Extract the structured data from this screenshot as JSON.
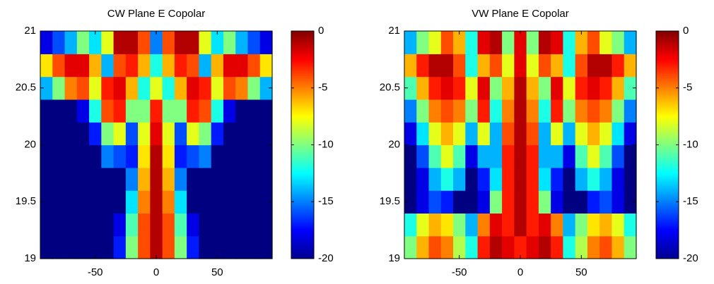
{
  "chart_data": [
    {
      "type": "heatmap",
      "title": "CW Plane E Copolar",
      "x": [
        -90,
        -80,
        -70,
        -60,
        -50,
        -40,
        -30,
        -20,
        -10,
        0,
        10,
        20,
        30,
        40,
        50,
        60,
        70,
        80,
        90
      ],
      "y": [
        19.1,
        19.3,
        19.5,
        19.7,
        19.9,
        20.1,
        20.3,
        20.5,
        20.7,
        20.9
      ],
      "z": [
        [
          -20,
          -20,
          -20,
          -20,
          -20,
          -20,
          -17,
          -10,
          -4,
          -1,
          -4,
          -10,
          -17,
          -20,
          -20,
          -20,
          -20,
          -20,
          -20
        ],
        [
          -20,
          -20,
          -20,
          -20,
          -20,
          -20,
          -18,
          -11,
          -4,
          -1,
          -4,
          -11,
          -18,
          -20,
          -20,
          -20,
          -20,
          -20,
          -20
        ],
        [
          -20,
          -20,
          -20,
          -20,
          -20,
          -20,
          -20,
          -13,
          -5,
          -1,
          -5,
          -13,
          -20,
          -20,
          -20,
          -20,
          -20,
          -20,
          -20
        ],
        [
          -20,
          -20,
          -20,
          -20,
          -20,
          -20,
          -20,
          -15,
          -6,
          -1,
          -6,
          -15,
          -20,
          -20,
          -20,
          -20,
          -20,
          -20,
          -20
        ],
        [
          -20,
          -20,
          -20,
          -20,
          -20,
          -15,
          -16,
          -17,
          -7,
          -1,
          -7,
          -17,
          -16,
          -15,
          -20,
          -20,
          -20,
          -20,
          -20
        ],
        [
          -20,
          -20,
          -20,
          -20,
          -17,
          -10,
          -8,
          -16,
          -8,
          -2,
          -8,
          -16,
          -8,
          -10,
          -17,
          -20,
          -20,
          -20,
          -20
        ],
        [
          -20,
          -20,
          -20,
          -18,
          -12,
          -4,
          -3,
          -10,
          -10,
          -3,
          -10,
          -10,
          -3,
          -4,
          -12,
          -18,
          -20,
          -20,
          -20
        ],
        [
          -14,
          -10,
          -5,
          -4,
          -8,
          -3,
          -2,
          -6,
          -12,
          -8,
          -12,
          -6,
          -2,
          -3,
          -8,
          -4,
          -5,
          -10,
          -14
        ],
        [
          -7,
          -4,
          -2,
          -2,
          -6,
          -14,
          -4,
          -3,
          -6,
          -12,
          -6,
          -3,
          -4,
          -14,
          -6,
          -2,
          -2,
          -4,
          -7
        ],
        [
          -18,
          -16,
          -14,
          -10,
          -13,
          -8,
          -1,
          -1,
          -4,
          -15,
          -4,
          -1,
          -1,
          -8,
          -13,
          -10,
          -14,
          -16,
          -18
        ]
      ],
      "xlim": [
        -95,
        95
      ],
      "ylim": [
        19,
        21
      ],
      "xticks": [
        -50,
        0,
        50
      ],
      "yticks": [
        19,
        19.5,
        20,
        20.5,
        21
      ],
      "clim": [
        -20,
        0
      ],
      "cticks": [
        0,
        -5,
        -10,
        -15,
        -20
      ],
      "colormap": "jet"
    },
    {
      "type": "heatmap",
      "title": "VW Plane E Copolar",
      "x": [
        -90,
        -80,
        -70,
        -60,
        -50,
        -40,
        -30,
        -20,
        -10,
        0,
        10,
        20,
        30,
        40,
        50,
        60,
        70,
        80,
        90
      ],
      "y": [
        19.1,
        19.3,
        19.5,
        19.7,
        19.9,
        20.1,
        20.3,
        20.5,
        20.7,
        20.9
      ],
      "z": [
        [
          -10,
          -6,
          -4,
          -5,
          -9,
          -12,
          -3,
          -1,
          -2,
          -3,
          -2,
          -1,
          -3,
          -12,
          -9,
          -5,
          -4,
          -6,
          -10
        ],
        [
          -12,
          -8,
          -6,
          -7,
          -10,
          -14,
          -5,
          -2,
          -3,
          -1,
          -3,
          -2,
          -5,
          -14,
          -10,
          -7,
          -6,
          -8,
          -12
        ],
        [
          -20,
          -18,
          -16,
          -17,
          -20,
          -20,
          -18,
          -10,
          -3,
          -1,
          -3,
          -10,
          -18,
          -20,
          -20,
          -17,
          -16,
          -18,
          -20
        ],
        [
          -20,
          -18,
          -14,
          -12,
          -14,
          -20,
          -17,
          -13,
          -3,
          -1,
          -3,
          -13,
          -17,
          -20,
          -14,
          -12,
          -14,
          -18,
          -20
        ],
        [
          -20,
          -16,
          -11,
          -8,
          -11,
          -18,
          -14,
          -14,
          -3,
          -1,
          -3,
          -14,
          -14,
          -18,
          -11,
          -8,
          -11,
          -16,
          -20
        ],
        [
          -18,
          -13,
          -8,
          -6,
          -8,
          -14,
          -8,
          -14,
          -4,
          -1,
          -4,
          -14,
          -8,
          -14,
          -8,
          -6,
          -8,
          -13,
          -18
        ],
        [
          -15,
          -10,
          -5,
          -4,
          -5,
          -10,
          -3,
          -12,
          -5,
          -1,
          -5,
          -12,
          -3,
          -10,
          -5,
          -4,
          -5,
          -10,
          -15
        ],
        [
          -11,
          -6,
          -3,
          -2,
          -3,
          -8,
          -2,
          -10,
          -6,
          -1,
          -6,
          -10,
          -2,
          -8,
          -3,
          -2,
          -3,
          -6,
          -11
        ],
        [
          -6,
          -3,
          -1,
          -1,
          -4,
          -12,
          -6,
          -4,
          -8,
          -2,
          -8,
          -4,
          -6,
          -12,
          -4,
          -1,
          -1,
          -3,
          -6
        ],
        [
          -14,
          -10,
          -8,
          -4,
          -6,
          -12,
          -2,
          -1,
          -10,
          -2,
          -10,
          -1,
          -2,
          -12,
          -6,
          -4,
          -8,
          -10,
          -14
        ]
      ],
      "xlim": [
        -95,
        95
      ],
      "ylim": [
        19,
        21
      ],
      "xticks": [
        -50,
        0,
        50
      ],
      "yticks": [
        19,
        19.5,
        20,
        20.5,
        21
      ],
      "clim": [
        -20,
        0
      ],
      "cticks": [
        0,
        -5,
        -10,
        -15,
        -20
      ],
      "colormap": "jet"
    }
  ]
}
